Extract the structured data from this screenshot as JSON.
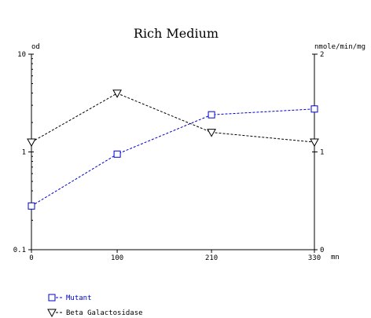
{
  "chart_data": {
    "type": "line",
    "title": "Rich Medium",
    "x": [
      0,
      100,
      210,
      330
    ],
    "x_tick_labels": [
      "0",
      "100",
      "210",
      "330"
    ],
    "x_unit": "mn",
    "xlim": [
      0,
      330
    ],
    "y_left": {
      "label": "od",
      "scale": "log",
      "ylim": [
        0.1,
        10
      ],
      "tick_labels": [
        "10",
        "1",
        "0.1"
      ],
      "tick_values": [
        10,
        1,
        0.1
      ]
    },
    "y_right": {
      "label": "nmole/min/mg",
      "scale": "linear",
      "ylim": [
        0,
        2
      ],
      "tick_labels": [
        "2",
        "1",
        "0"
      ],
      "tick_values": [
        2,
        1,
        0
      ]
    },
    "series": [
      {
        "name": "Mutant",
        "axis": "left",
        "marker": "square",
        "color": "#0000cc",
        "values": [
          0.28,
          0.95,
          2.4,
          2.75
        ]
      },
      {
        "name": "Beta Galactosidase",
        "axis": "right",
        "marker": "triangle-down",
        "color": "#000000",
        "values": [
          1.1,
          1.6,
          1.2,
          1.1
        ]
      }
    ],
    "grid": false,
    "legend_placement": "bottom-left"
  }
}
